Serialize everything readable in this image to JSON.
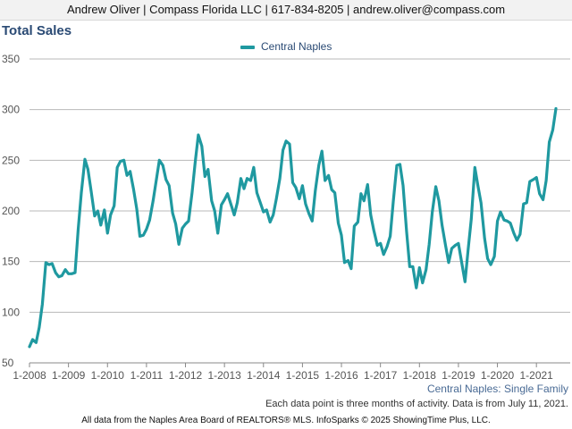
{
  "header": {
    "contact": "Andrew Oliver | Compass Florida LLC | 617-834-8205 | andrew.oliver@compass.com"
  },
  "title": "Total Sales",
  "legend": {
    "series_name": "Central Naples",
    "color": "#1f99a0"
  },
  "region_label": "Central Naples: Single Family",
  "note": "Each data point is three months of activity. Data is from July 11, 2021.",
  "footer": "All data from the Naples Area Board of REALTORS® MLS. InfoSparks © 2025 ShowingTime Plus, LLC.",
  "chart_data": {
    "type": "line",
    "title": "Total Sales",
    "xlabel": "",
    "ylabel": "",
    "ylim": [
      50,
      350
    ],
    "yticks": [
      50,
      100,
      150,
      200,
      250,
      300,
      350
    ],
    "xlim": [
      2008.0,
      2021.5
    ],
    "xticks": [
      2008,
      2009,
      2010,
      2011,
      2012,
      2013,
      2014,
      2015,
      2016,
      2017,
      2018,
      2019,
      2020,
      2021
    ],
    "xtick_labels": [
      "1-2008",
      "1-2009",
      "1-2010",
      "1-2011",
      "1-2012",
      "1-2013",
      "1-2014",
      "1-2015",
      "1-2016",
      "1-2017",
      "1-2018",
      "1-2019",
      "1-2020",
      "1-2021"
    ],
    "grid": true,
    "legend_position": "top-center",
    "series": [
      {
        "name": "Central Naples",
        "color": "#1f99a0",
        "points": [
          [
            2008.0,
            66
          ],
          [
            2008.08,
            73
          ],
          [
            2008.17,
            70
          ],
          [
            2008.25,
            85
          ],
          [
            2008.33,
            108
          ],
          [
            2008.42,
            149
          ],
          [
            2008.5,
            147
          ],
          [
            2008.58,
            148
          ],
          [
            2008.67,
            139
          ],
          [
            2008.75,
            135
          ],
          [
            2008.83,
            136
          ],
          [
            2008.92,
            142
          ],
          [
            2009.0,
            138
          ],
          [
            2009.08,
            138
          ],
          [
            2009.17,
            139
          ],
          [
            2009.25,
            182
          ],
          [
            2009.33,
            218
          ],
          [
            2009.42,
            251
          ],
          [
            2009.5,
            241
          ],
          [
            2009.58,
            220
          ],
          [
            2009.67,
            195
          ],
          [
            2009.75,
            200
          ],
          [
            2009.83,
            186
          ],
          [
            2009.92,
            201
          ],
          [
            2010.0,
            178
          ],
          [
            2010.08,
            196
          ],
          [
            2010.17,
            205
          ],
          [
            2010.25,
            243
          ],
          [
            2010.33,
            249
          ],
          [
            2010.42,
            250
          ],
          [
            2010.5,
            235
          ],
          [
            2010.58,
            239
          ],
          [
            2010.67,
            221
          ],
          [
            2010.75,
            202
          ],
          [
            2010.83,
            175
          ],
          [
            2010.92,
            176
          ],
          [
            2011.0,
            182
          ],
          [
            2011.08,
            191
          ],
          [
            2011.17,
            210
          ],
          [
            2011.25,
            230
          ],
          [
            2011.33,
            250
          ],
          [
            2011.42,
            245
          ],
          [
            2011.5,
            231
          ],
          [
            2011.58,
            225
          ],
          [
            2011.67,
            198
          ],
          [
            2011.75,
            187
          ],
          [
            2011.83,
            167
          ],
          [
            2011.92,
            183
          ],
          [
            2012.0,
            187
          ],
          [
            2012.08,
            190
          ],
          [
            2012.17,
            218
          ],
          [
            2012.25,
            248
          ],
          [
            2012.33,
            275
          ],
          [
            2012.42,
            264
          ],
          [
            2012.5,
            234
          ],
          [
            2012.58,
            241
          ],
          [
            2012.67,
            210
          ],
          [
            2012.75,
            200
          ],
          [
            2012.83,
            178
          ],
          [
            2012.92,
            206
          ],
          [
            2013.0,
            211
          ],
          [
            2013.08,
            217
          ],
          [
            2013.17,
            206
          ],
          [
            2013.25,
            196
          ],
          [
            2013.33,
            208
          ],
          [
            2013.42,
            232
          ],
          [
            2013.5,
            222
          ],
          [
            2013.58,
            232
          ],
          [
            2013.67,
            230
          ],
          [
            2013.75,
            243
          ],
          [
            2013.83,
            218
          ],
          [
            2013.92,
            208
          ],
          [
            2014.0,
            199
          ],
          [
            2014.08,
            201
          ],
          [
            2014.17,
            189
          ],
          [
            2014.25,
            196
          ],
          [
            2014.33,
            212
          ],
          [
            2014.42,
            232
          ],
          [
            2014.5,
            260
          ],
          [
            2014.58,
            269
          ],
          [
            2014.67,
            266
          ],
          [
            2014.75,
            228
          ],
          [
            2014.83,
            223
          ],
          [
            2014.92,
            212
          ],
          [
            2015.0,
            225
          ],
          [
            2015.08,
            207
          ],
          [
            2015.17,
            197
          ],
          [
            2015.25,
            190
          ],
          [
            2015.33,
            220
          ],
          [
            2015.42,
            245
          ],
          [
            2015.5,
            259
          ],
          [
            2015.58,
            230
          ],
          [
            2015.67,
            235
          ],
          [
            2015.75,
            221
          ],
          [
            2015.83,
            218
          ],
          [
            2015.92,
            188
          ],
          [
            2016.0,
            176
          ],
          [
            2016.08,
            149
          ],
          [
            2016.17,
            151
          ],
          [
            2016.25,
            143
          ],
          [
            2016.33,
            185
          ],
          [
            2016.42,
            189
          ],
          [
            2016.5,
            217
          ],
          [
            2016.58,
            210
          ],
          [
            2016.67,
            226
          ],
          [
            2016.75,
            196
          ],
          [
            2016.83,
            181
          ],
          [
            2016.92,
            166
          ],
          [
            2017.0,
            168
          ],
          [
            2017.08,
            157
          ],
          [
            2017.17,
            165
          ],
          [
            2017.25,
            175
          ],
          [
            2017.33,
            210
          ],
          [
            2017.42,
            245
          ],
          [
            2017.5,
            246
          ],
          [
            2017.58,
            225
          ],
          [
            2017.67,
            180
          ],
          [
            2017.75,
            145
          ],
          [
            2017.83,
            145
          ],
          [
            2017.92,
            124
          ],
          [
            2018.0,
            144
          ],
          [
            2018.08,
            129
          ],
          [
            2018.17,
            142
          ],
          [
            2018.25,
            167
          ],
          [
            2018.33,
            199
          ],
          [
            2018.42,
            224
          ],
          [
            2018.5,
            210
          ],
          [
            2018.58,
            186
          ],
          [
            2018.67,
            166
          ],
          [
            2018.75,
            149
          ],
          [
            2018.83,
            163
          ],
          [
            2018.92,
            166
          ],
          [
            2019.0,
            168
          ],
          [
            2019.08,
            150
          ],
          [
            2019.17,
            130
          ],
          [
            2019.25,
            162
          ],
          [
            2019.33,
            192
          ],
          [
            2019.42,
            243
          ],
          [
            2019.5,
            225
          ],
          [
            2019.58,
            208
          ],
          [
            2019.67,
            173
          ],
          [
            2019.75,
            153
          ],
          [
            2019.83,
            147
          ],
          [
            2019.92,
            155
          ],
          [
            2020.0,
            190
          ],
          [
            2020.08,
            199
          ],
          [
            2020.17,
            191
          ],
          [
            2020.25,
            190
          ],
          [
            2020.33,
            188
          ],
          [
            2020.42,
            178
          ],
          [
            2020.5,
            171
          ],
          [
            2020.58,
            177
          ],
          [
            2020.67,
            207
          ],
          [
            2020.75,
            208
          ],
          [
            2020.83,
            229
          ],
          [
            2020.92,
            231
          ],
          [
            2021.0,
            233
          ],
          [
            2021.08,
            217
          ],
          [
            2021.17,
            211
          ],
          [
            2021.25,
            230
          ],
          [
            2021.33,
            268
          ],
          [
            2021.42,
            280
          ],
          [
            2021.5,
            301
          ]
        ]
      }
    ]
  }
}
